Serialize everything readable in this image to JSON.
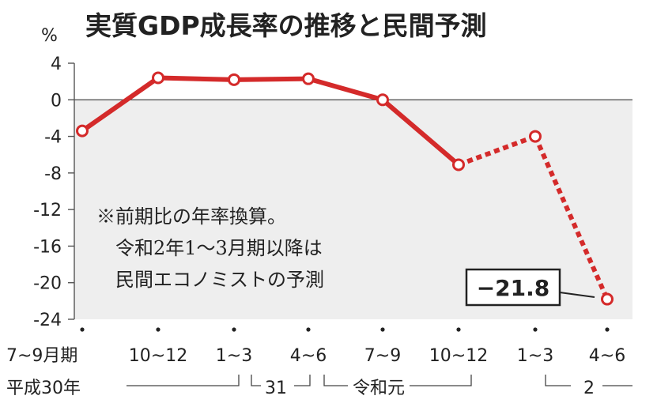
{
  "title": "実質GDP成長率の推移と民間予測",
  "unit": "%",
  "note_lines": [
    "※前期比の年率換算。",
    "令和2年1～3月期以降は",
    "民間エコノミストの予測"
  ],
  "callout": "−21.8",
  "era_labels": {
    "heisei30": "平成30年",
    "h31": "31",
    "reiwa": "令和元",
    "r2": "2"
  },
  "colors": {
    "line": "#d42a2a",
    "plot_bg": "#eeeeee",
    "axis": "#555555"
  },
  "chart_data": {
    "type": "line",
    "title": "実質GDP成長率の推移と民間予測",
    "ylabel": "%",
    "xlabel": "",
    "ylim": [
      -24,
      4
    ],
    "yticks": [
      4,
      0,
      -4,
      -8,
      -12,
      -16,
      -20,
      -24
    ],
    "categories": [
      "7~9月期",
      "10~12",
      "1~3",
      "4~6",
      "7~9",
      "10~12",
      "1~3",
      "4~6"
    ],
    "values": [
      -3.4,
      2.4,
      2.2,
      2.3,
      0.0,
      -7.1,
      -4.0,
      -21.8
    ],
    "solid_until_index": 5,
    "forecast_from_index": 5,
    "legend": "none",
    "grid": false
  }
}
